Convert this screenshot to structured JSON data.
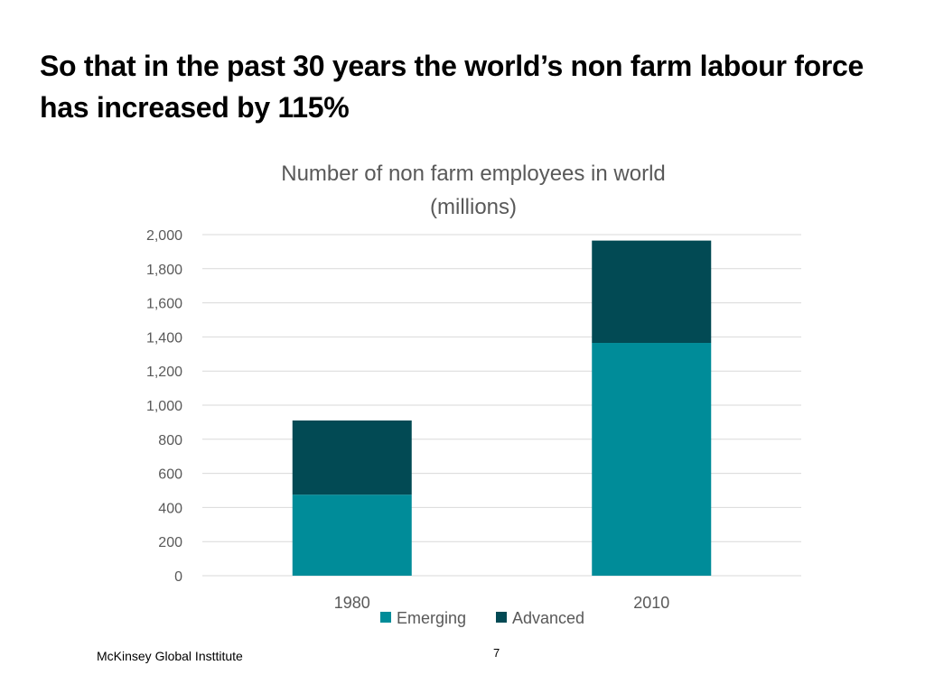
{
  "slide": {
    "title": "So that in the past 30 years the world’s non farm labour force has increased by 115%",
    "footer": "McKinsey Global Insttitute",
    "page_number": "7"
  },
  "chart_data": {
    "type": "bar",
    "stacked": true,
    "title_lines": [
      "Number of non farm employees in world",
      "(millions)"
    ],
    "categories": [
      "1980",
      "2010"
    ],
    "series": [
      {
        "name": "Emerging",
        "values": [
          475,
          1365
        ],
        "color": "#008C99"
      },
      {
        "name": "Advanced",
        "values": [
          435,
          600
        ],
        "color": "#024A54"
      }
    ],
    "ylim": [
      0,
      2000
    ],
    "y_ticks": [
      0,
      200,
      400,
      600,
      800,
      1000,
      1200,
      1400,
      1600,
      1800,
      2000
    ],
    "y_tick_labels": [
      "0",
      "200",
      "400",
      "600",
      "800",
      "1,000",
      "1,200",
      "1,400",
      "1,600",
      "1,800",
      "2,000"
    ],
    "grid": true,
    "legend_position": "bottom",
    "colors": {
      "grid": "#D9D9D9",
      "axis_text": "#595959",
      "title_text": "#595959"
    }
  }
}
